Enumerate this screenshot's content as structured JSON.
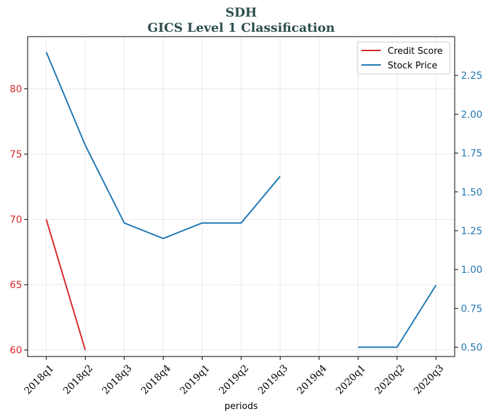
{
  "chart_data": {
    "type": "line",
    "title": "SDH",
    "subtitle": "GICS Level 1 Classification",
    "xlabel": "periods",
    "categories": [
      "2018q1",
      "2018q2",
      "2018q3",
      "2018q4",
      "2019q1",
      "2019q2",
      "2019q3",
      "2019q4",
      "2020q1",
      "2020q2",
      "2020q3"
    ],
    "left_axis": {
      "ylim": [
        59.5,
        84
      ],
      "ticks": [
        60,
        65,
        70,
        75,
        80
      ],
      "tick_labels": [
        "60",
        "65",
        "70",
        "75",
        "80"
      ],
      "color": "#d62728"
    },
    "right_axis": {
      "ylim": [
        0.44,
        2.5
      ],
      "ticks": [
        0.5,
        0.75,
        1.0,
        1.25,
        1.5,
        1.75,
        2.0,
        2.25
      ],
      "tick_labels": [
        "0.50",
        "0.75",
        "1.00",
        "1.25",
        "1.50",
        "1.75",
        "2.00",
        "2.25"
      ],
      "color": "#1f77b4"
    },
    "series": [
      {
        "name": "Credit Score",
        "axis": "left",
        "color": "#d62728",
        "values": [
          70,
          60,
          null,
          null,
          null,
          null,
          null,
          null,
          null,
          null,
          null
        ]
      },
      {
        "name": "Stock Price",
        "axis": "right",
        "color": "#1f77b4",
        "values": [
          2.4,
          1.8,
          1.3,
          1.2,
          1.3,
          1.3,
          1.6,
          null,
          0.5,
          0.5,
          0.9
        ]
      }
    ],
    "grid": true,
    "legend_position": "top-right"
  }
}
